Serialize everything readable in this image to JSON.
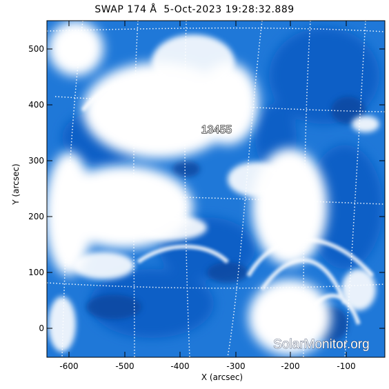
{
  "title": "SWAP 174 Å  5-Oct-2023 19:28:32.889",
  "x_axis": {
    "label": "X (arcsec)",
    "ticks": [
      "-600",
      "-500",
      "-400",
      "-300",
      "-200",
      "-100"
    ]
  },
  "y_axis": {
    "label": "Y (arcsec)",
    "ticks": [
      "0",
      "100",
      "200",
      "300",
      "400",
      "500"
    ]
  },
  "annotation": {
    "region": "13455"
  },
  "watermark": "SolarMonitor.org",
  "colors": {
    "base": "#0a63d2",
    "bright": "#ffffff",
    "dark": "#04357e",
    "grid": "#ffffff"
  }
}
